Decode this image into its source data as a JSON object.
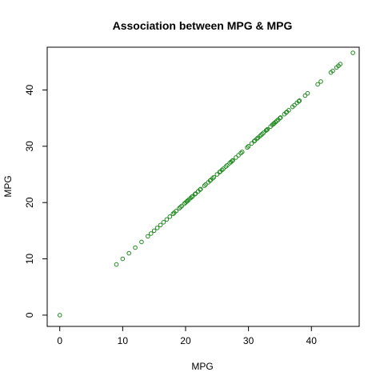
{
  "chart_data": {
    "type": "scatter",
    "title": "Association between MPG & MPG",
    "xlabel": "MPG",
    "ylabel": "MPG",
    "xlim": [
      -2,
      47.6
    ],
    "ylim": [
      -2,
      47.6
    ],
    "x_ticks": [
      0,
      10,
      20,
      30,
      40
    ],
    "y_ticks": [
      0,
      10,
      20,
      30,
      40
    ],
    "grid": false,
    "legend": "none",
    "point_color": "#1f8a1f",
    "series": [
      {
        "x": [
          0,
          9,
          10,
          11,
          12,
          13,
          14,
          14.5,
          15,
          15.5,
          16,
          16.5,
          17,
          17.5,
          18,
          18.2,
          18.5,
          19,
          19.2,
          19.4,
          19.8,
          20,
          20.2,
          20.3,
          20.5,
          20.8,
          21,
          21.1,
          21.5,
          21.6,
          22,
          22.3,
          22.4,
          23,
          23.2,
          23.6,
          23.9,
          24,
          24.3,
          24.5,
          25,
          25.4,
          25.5,
          25.8,
          26,
          26.4,
          26.6,
          27,
          27.2,
          27.4,
          27.5,
          28,
          28.4,
          28.8,
          29,
          29.8,
          30,
          30.5,
          30.9,
          31,
          31.3,
          31.5,
          31.8,
          32,
          32.2,
          32.4,
          32.8,
          32.9,
          33,
          33.5,
          33.8,
          34,
          34.1,
          34.3,
          34.5,
          34.7,
          35,
          35.1,
          35.7,
          36,
          36.1,
          36.4,
          37,
          37.3,
          37.7,
          38,
          38.1,
          39,
          39.4,
          41,
          41.5,
          43.1,
          43.4,
          44,
          44.3,
          44.6,
          46.6
        ],
        "y": [
          0,
          9,
          10,
          11,
          12,
          13,
          14,
          14.5,
          15,
          15.5,
          16,
          16.5,
          17,
          17.5,
          18,
          18.2,
          18.5,
          19,
          19.2,
          19.4,
          19.8,
          20,
          20.2,
          20.3,
          20.5,
          20.8,
          21,
          21.1,
          21.5,
          21.6,
          22,
          22.3,
          22.4,
          23,
          23.2,
          23.6,
          23.9,
          24,
          24.3,
          24.5,
          25,
          25.4,
          25.5,
          25.8,
          26,
          26.4,
          26.6,
          27,
          27.2,
          27.4,
          27.5,
          28,
          28.4,
          28.8,
          29,
          29.8,
          30,
          30.5,
          30.9,
          31,
          31.3,
          31.5,
          31.8,
          32,
          32.2,
          32.4,
          32.8,
          32.9,
          33,
          33.5,
          33.8,
          34,
          34.1,
          34.3,
          34.5,
          34.7,
          35,
          35.1,
          35.7,
          36,
          36.1,
          36.4,
          37,
          37.3,
          37.7,
          38,
          38.1,
          39,
          39.4,
          41,
          41.5,
          43.1,
          43.4,
          44,
          44.3,
          44.6,
          46.6
        ]
      }
    ]
  }
}
